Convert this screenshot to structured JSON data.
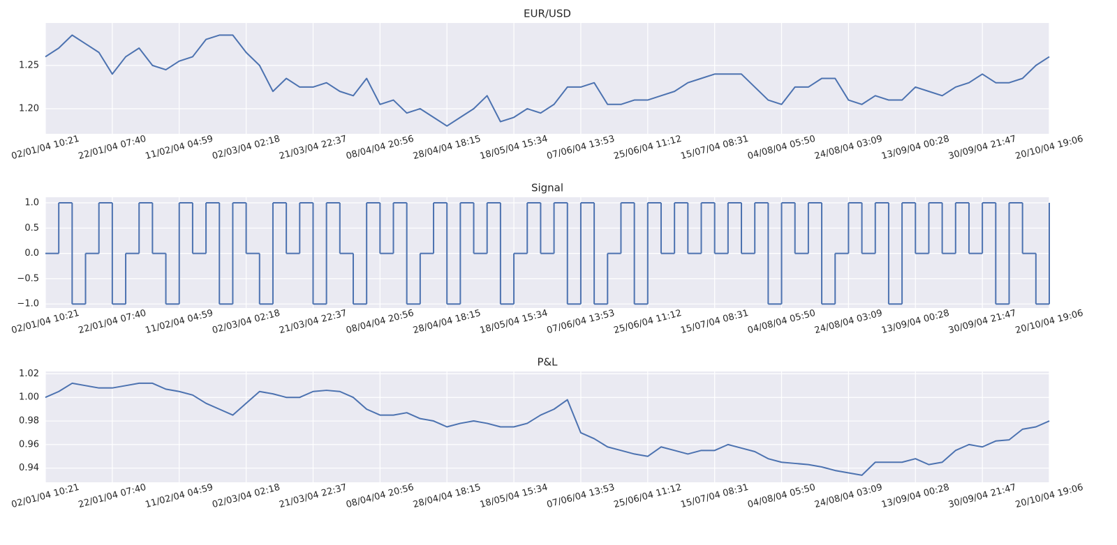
{
  "chart_data": [
    {
      "type": "line",
      "title": "EUR/USD",
      "color": "#4c72b0",
      "grid": true,
      "x": [
        0,
        2,
        4,
        6,
        8,
        10,
        12,
        14,
        16,
        18,
        20,
        22,
        24,
        26,
        28,
        30,
        32,
        34,
        36,
        38,
        40,
        42,
        44,
        46,
        48,
        50,
        52,
        54,
        56,
        58,
        60,
        62,
        64,
        66,
        68,
        70,
        72,
        74,
        76,
        78,
        80,
        82,
        84,
        86,
        88,
        90,
        92,
        94,
        96,
        98,
        100,
        102,
        104,
        106,
        108,
        110,
        112,
        114,
        116,
        118,
        120,
        122,
        124,
        126,
        128,
        130,
        132,
        134,
        136,
        138,
        140,
        142,
        144,
        146,
        148,
        150
      ],
      "values": [
        1.26,
        1.27,
        1.285,
        1.275,
        1.265,
        1.24,
        1.26,
        1.27,
        1.25,
        1.245,
        1.255,
        1.26,
        1.28,
        1.285,
        1.285,
        1.265,
        1.25,
        1.22,
        1.235,
        1.225,
        1.225,
        1.23,
        1.22,
        1.215,
        1.235,
        1.205,
        1.21,
        1.195,
        1.2,
        1.19,
        1.18,
        1.19,
        1.2,
        1.215,
        1.185,
        1.19,
        1.2,
        1.195,
        1.205,
        1.225,
        1.225,
        1.23,
        1.205,
        1.205,
        1.21,
        1.21,
        1.215,
        1.22,
        1.23,
        1.235,
        1.24,
        1.24,
        1.24,
        1.225,
        1.21,
        1.205,
        1.225,
        1.225,
        1.235,
        1.235,
        1.21,
        1.205,
        1.215,
        1.21,
        1.21,
        1.225,
        1.22,
        1.215,
        1.225,
        1.23,
        1.24,
        1.23,
        1.23,
        1.235,
        1.25,
        1.26
      ],
      "xlim": [
        0,
        150
      ],
      "xticks": [
        {
          "value": 0,
          "label": "02/01/04 10:21"
        },
        {
          "value": 10,
          "label": "22/01/04 07:40"
        },
        {
          "value": 20,
          "label": "11/02/04 04:59"
        },
        {
          "value": 30,
          "label": "02/03/04 02:18"
        },
        {
          "value": 40,
          "label": "21/03/04 22:37"
        },
        {
          "value": 50,
          "label": "08/04/04 20:56"
        },
        {
          "value": 60,
          "label": "28/04/04 18:15"
        },
        {
          "value": 70,
          "label": "18/05/04 15:34"
        },
        {
          "value": 80,
          "label": "07/06/04 13:53"
        },
        {
          "value": 90,
          "label": "25/06/04 11:12"
        },
        {
          "value": 100,
          "label": "15/07/04 08:31"
        },
        {
          "value": 110,
          "label": "04/08/04 05:50"
        },
        {
          "value": 120,
          "label": "24/08/04 03:09"
        },
        {
          "value": 130,
          "label": "13/09/04 00:28"
        },
        {
          "value": 140,
          "label": "30/09/04 21:47"
        },
        {
          "value": 150,
          "label": "20/10/04 19:06"
        }
      ],
      "ylim": [
        1.171,
        1.299
      ],
      "yticks": [
        {
          "value": 1.2,
          "label": "1.20"
        },
        {
          "value": 1.25,
          "label": "1.25"
        }
      ]
    },
    {
      "type": "line",
      "title": "Signal",
      "color": "#4c72b0",
      "grid": true,
      "step": "post",
      "x": [
        0,
        2,
        4,
        6,
        8,
        10,
        12,
        14,
        16,
        18,
        20,
        22,
        24,
        26,
        28,
        30,
        32,
        34,
        36,
        38,
        40,
        42,
        44,
        46,
        48,
        50,
        52,
        54,
        56,
        58,
        60,
        62,
        64,
        66,
        68,
        70,
        72,
        74,
        76,
        78,
        80,
        82,
        84,
        86,
        88,
        90,
        92,
        94,
        96,
        98,
        100,
        102,
        104,
        106,
        108,
        110,
        112,
        114,
        116,
        118,
        120,
        122,
        124,
        126,
        128,
        130,
        132,
        134,
        136,
        138,
        140,
        142,
        144,
        146,
        148,
        150
      ],
      "values": [
        0,
        1,
        -1,
        0,
        1,
        -1,
        0,
        1,
        0,
        -1,
        1,
        0,
        1,
        -1,
        1,
        0,
        -1,
        1,
        0,
        1,
        -1,
        1,
        0,
        -1,
        1,
        0,
        1,
        -1,
        0,
        1,
        -1,
        1,
        0,
        1,
        -1,
        0,
        1,
        0,
        1,
        -1,
        1,
        -1,
        0,
        1,
        -1,
        1,
        0,
        1,
        0,
        1,
        0,
        1,
        0,
        1,
        -1,
        1,
        0,
        1,
        -1,
        0,
        1,
        0,
        1,
        -1,
        1,
        0,
        1,
        0,
        1,
        0,
        1,
        -1,
        1,
        0,
        -1,
        1
      ],
      "xlim": [
        0,
        150
      ],
      "xticks": [
        {
          "value": 0,
          "label": "02/01/04 10:21"
        },
        {
          "value": 10,
          "label": "22/01/04 07:40"
        },
        {
          "value": 20,
          "label": "11/02/04 04:59"
        },
        {
          "value": 30,
          "label": "02/03/04 02:18"
        },
        {
          "value": 40,
          "label": "21/03/04 22:37"
        },
        {
          "value": 50,
          "label": "08/04/04 20:56"
        },
        {
          "value": 60,
          "label": "28/04/04 18:15"
        },
        {
          "value": 70,
          "label": "18/05/04 15:34"
        },
        {
          "value": 80,
          "label": "07/06/04 13:53"
        },
        {
          "value": 90,
          "label": "25/06/04 11:12"
        },
        {
          "value": 100,
          "label": "15/07/04 08:31"
        },
        {
          "value": 110,
          "label": "04/08/04 05:50"
        },
        {
          "value": 120,
          "label": "24/08/04 03:09"
        },
        {
          "value": 130,
          "label": "13/09/04 00:28"
        },
        {
          "value": 140,
          "label": "30/09/04 21:47"
        },
        {
          "value": 150,
          "label": "20/10/04 19:06"
        }
      ],
      "ylim": [
        -1.08,
        1.11
      ],
      "yticks": [
        {
          "value": -1,
          "label": "−1.0"
        },
        {
          "value": -0.5,
          "label": "−0.5"
        },
        {
          "value": 0,
          "label": "0.0"
        },
        {
          "value": 0.5,
          "label": "0.5"
        },
        {
          "value": 1,
          "label": "1.0"
        }
      ]
    },
    {
      "type": "line",
      "title": "P&L",
      "color": "#4c72b0",
      "grid": true,
      "x": [
        0,
        2,
        4,
        6,
        8,
        10,
        12,
        14,
        16,
        18,
        20,
        22,
        24,
        26,
        28,
        30,
        32,
        34,
        36,
        38,
        40,
        42,
        44,
        46,
        48,
        50,
        52,
        54,
        56,
        58,
        60,
        62,
        64,
        66,
        68,
        70,
        72,
        74,
        76,
        78,
        80,
        82,
        84,
        86,
        88,
        90,
        92,
        94,
        96,
        98,
        100,
        102,
        104,
        106,
        108,
        110,
        112,
        114,
        116,
        118,
        120,
        122,
        124,
        126,
        128,
        130,
        132,
        134,
        136,
        138,
        140,
        142,
        144,
        146,
        148,
        150
      ],
      "values": [
        1.0,
        1.005,
        1.012,
        1.01,
        1.008,
        1.008,
        1.01,
        1.012,
        1.012,
        1.007,
        1.005,
        1.002,
        0.995,
        0.99,
        0.985,
        0.995,
        1.005,
        1.003,
        1.0,
        1.0,
        1.005,
        1.006,
        1.005,
        1.0,
        0.99,
        0.985,
        0.985,
        0.987,
        0.982,
        0.98,
        0.975,
        0.978,
        0.98,
        0.978,
        0.975,
        0.975,
        0.978,
        0.985,
        0.99,
        0.998,
        0.97,
        0.965,
        0.958,
        0.955,
        0.952,
        0.95,
        0.958,
        0.955,
        0.952,
        0.955,
        0.955,
        0.96,
        0.957,
        0.954,
        0.948,
        0.945,
        0.944,
        0.943,
        0.941,
        0.938,
        0.936,
        0.934,
        0.945,
        0.945,
        0.945,
        0.948,
        0.943,
        0.945,
        0.955,
        0.96,
        0.958,
        0.963,
        0.964,
        0.973,
        0.975,
        0.98
      ],
      "xlim": [
        0,
        150
      ],
      "xticks": [
        {
          "value": 0,
          "label": "02/01/04 10:21"
        },
        {
          "value": 10,
          "label": "22/01/04 07:40"
        },
        {
          "value": 20,
          "label": "11/02/04 04:59"
        },
        {
          "value": 30,
          "label": "02/03/04 02:18"
        },
        {
          "value": 40,
          "label": "21/03/04 22:37"
        },
        {
          "value": 50,
          "label": "08/04/04 20:56"
        },
        {
          "value": 60,
          "label": "28/04/04 18:15"
        },
        {
          "value": 70,
          "label": "18/05/04 15:34"
        },
        {
          "value": 80,
          "label": "07/06/04 13:53"
        },
        {
          "value": 90,
          "label": "25/06/04 11:12"
        },
        {
          "value": 100,
          "label": "15/07/04 08:31"
        },
        {
          "value": 110,
          "label": "04/08/04 05:50"
        },
        {
          "value": 120,
          "label": "24/08/04 03:09"
        },
        {
          "value": 130,
          "label": "13/09/04 00:28"
        },
        {
          "value": 140,
          "label": "30/09/04 21:47"
        },
        {
          "value": 150,
          "label": "20/10/04 19:06"
        }
      ],
      "ylim": [
        0.928,
        1.022
      ],
      "yticks": [
        0.94,
        0.96,
        0.98,
        {
          "value": 1.0,
          "label": "1.00"
        },
        1.02
      ]
    }
  ]
}
